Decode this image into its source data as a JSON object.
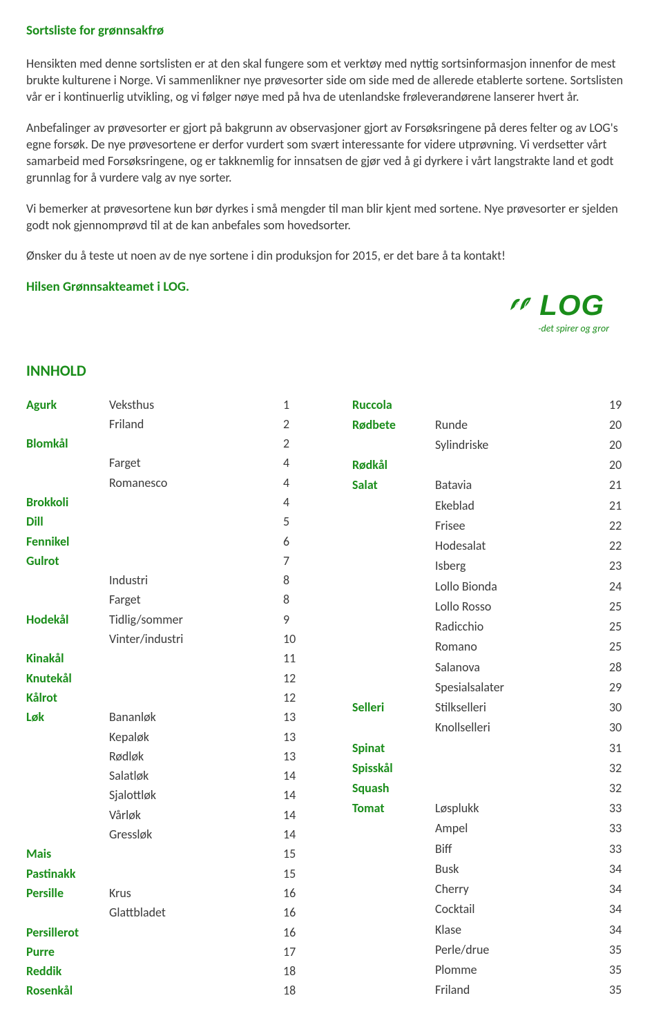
{
  "colors": {
    "accent": "#1a8d1a",
    "text": "#3a3a3a",
    "background": "#ffffff"
  },
  "typography": {
    "body_fontsize": 18,
    "title_fontsize": 19,
    "heading_fontsize": 22
  },
  "title": "Sortsliste for grønnsakfrø",
  "paragraphs": [
    "Hensikten med denne sortslisten er at den skal fungere som et verktøy med nyttig sortsinformasjon innenfor de mest brukte kulturene i Norge. Vi sammenlikner nye prøvesorter side om side med de allerede etablerte sortene. Sortslisten vår er i kontinuerlig utvikling, og vi følger nøye med på hva de utenlandske frøleverandørene lanserer hvert år.",
    "Anbefalinger av prøvesorter er gjort på bakgrunn av observasjoner gjort av Forsøksringene på deres felter og av LOG's egne forsøk. De nye prøvesortene er derfor vurdert som svært interessante for videre utprøvning. Vi verdsetter vårt samarbeid med Forsøksringene, og er takknemlig for innsatsen de gjør ved å gi dyrkere i vårt langstrakte land et godt grunnlag for å vurdere valg av nye sorter.",
    "Vi bemerker at prøvesortene kun bør dyrkes i små mengder til man blir kjent med sortene. Nye prøvesorter er sjelden godt nok gjennomprøvd til at de kan anbefales som hovedsorter.",
    "Ønsker du å teste ut noen av de nye sortene i din produksjon for 2015, er det bare å ta kontakt!"
  ],
  "signoff": "Hilsen Grønnsakteamet i LOG.",
  "logo": {
    "text": "LOG",
    "tagline": "-det spirer og gror"
  },
  "toc_heading": "INNHOLD",
  "toc_left": [
    {
      "cat": "Agurk",
      "sub": "Veksthus",
      "page": "1"
    },
    {
      "cat": "",
      "sub": "Friland",
      "page": "2"
    },
    {
      "cat": "Blomkål",
      "sub": "",
      "page": "2"
    },
    {
      "cat": "",
      "sub": "Farget",
      "page": "4"
    },
    {
      "cat": "",
      "sub": "Romanesco",
      "page": "4"
    },
    {
      "cat": "Brokkoli",
      "sub": "",
      "page": "4"
    },
    {
      "cat": "Dill",
      "sub": "",
      "page": "5"
    },
    {
      "cat": "Fennikel",
      "sub": "",
      "page": "6"
    },
    {
      "cat": "Gulrot",
      "sub": "",
      "page": "7"
    },
    {
      "cat": "",
      "sub": "Industri",
      "page": "8"
    },
    {
      "cat": "",
      "sub": "Farget",
      "page": "8"
    },
    {
      "cat": "Hodekål",
      "sub": "Tidlig/sommer",
      "page": "9"
    },
    {
      "cat": "",
      "sub": "Vinter/industri",
      "page": "10"
    },
    {
      "cat": "Kinakål",
      "sub": "",
      "page": "11"
    },
    {
      "cat": "Knutekål",
      "sub": "",
      "page": "12"
    },
    {
      "cat": "Kålrot",
      "sub": "",
      "page": "12"
    },
    {
      "cat": "Løk",
      "sub": "Bananløk",
      "page": "13"
    },
    {
      "cat": "",
      "sub": "Kepaløk",
      "page": "13"
    },
    {
      "cat": "",
      "sub": "Rødløk",
      "page": "13"
    },
    {
      "cat": "",
      "sub": "Salatløk",
      "page": "14"
    },
    {
      "cat": "",
      "sub": "Sjalottløk",
      "page": "14"
    },
    {
      "cat": "",
      "sub": "Vårløk",
      "page": "14"
    },
    {
      "cat": "",
      "sub": "Gressløk",
      "page": "14"
    },
    {
      "cat": "Mais",
      "sub": "",
      "page": "15"
    },
    {
      "cat": "Pastinakk",
      "sub": "",
      "page": "15"
    },
    {
      "cat": "Persille",
      "sub": "Krus",
      "page": "16"
    },
    {
      "cat": "",
      "sub": "Glattbladet",
      "page": "16"
    },
    {
      "cat": "Persillerot",
      "sub": "",
      "page": "16"
    },
    {
      "cat": "Purre",
      "sub": "",
      "page": "17"
    },
    {
      "cat": "Reddik",
      "sub": "",
      "page": "18"
    },
    {
      "cat": "Rosenkål",
      "sub": "",
      "page": "18"
    }
  ],
  "toc_right": [
    {
      "cat": "Ruccola",
      "sub": "",
      "page": "19"
    },
    {
      "cat": "Rødbete",
      "sub": "Runde",
      "page": "20"
    },
    {
      "cat": "",
      "sub": "Sylindriske",
      "page": "20"
    },
    {
      "cat": "Rødkål",
      "sub": "",
      "page": "20"
    },
    {
      "cat": "Salat",
      "sub": "Batavia",
      "page": "21"
    },
    {
      "cat": "",
      "sub": "Ekeblad",
      "page": "21"
    },
    {
      "cat": "",
      "sub": "Frisee",
      "page": "22"
    },
    {
      "cat": "",
      "sub": "Hodesalat",
      "page": "22"
    },
    {
      "cat": "",
      "sub": "Isberg",
      "page": "23"
    },
    {
      "cat": "",
      "sub": "Lollo Bionda",
      "page": "24"
    },
    {
      "cat": "",
      "sub": "Lollo Rosso",
      "page": "25"
    },
    {
      "cat": "",
      "sub": "Radicchio",
      "page": "25"
    },
    {
      "cat": "",
      "sub": "Romano",
      "page": "25"
    },
    {
      "cat": "",
      "sub": "Salanova",
      "page": "28"
    },
    {
      "cat": "",
      "sub": "Spesialsalater",
      "page": "29"
    },
    {
      "cat": "Selleri",
      "sub": "Stilkselleri",
      "page": "30"
    },
    {
      "cat": "",
      "sub": "Knollselleri",
      "page": "30"
    },
    {
      "cat": "Spinat",
      "sub": "",
      "page": "31"
    },
    {
      "cat": "Spisskål",
      "sub": "",
      "page": "32"
    },
    {
      "cat": "Squash",
      "sub": "",
      "page": "32"
    },
    {
      "cat": "Tomat",
      "sub": "Løsplukk",
      "page": "33"
    },
    {
      "cat": "",
      "sub": "Ampel",
      "page": "33"
    },
    {
      "cat": "",
      "sub": "Biff",
      "page": "33"
    },
    {
      "cat": "",
      "sub": "Busk",
      "page": "34"
    },
    {
      "cat": "",
      "sub": "Cherry",
      "page": "34"
    },
    {
      "cat": "",
      "sub": "Cocktail",
      "page": "34"
    },
    {
      "cat": "",
      "sub": "Klase",
      "page": "34"
    },
    {
      "cat": "",
      "sub": "Perle/drue",
      "page": "35"
    },
    {
      "cat": "",
      "sub": "Plomme",
      "page": "35"
    },
    {
      "cat": "",
      "sub": "Friland",
      "page": "35"
    }
  ]
}
